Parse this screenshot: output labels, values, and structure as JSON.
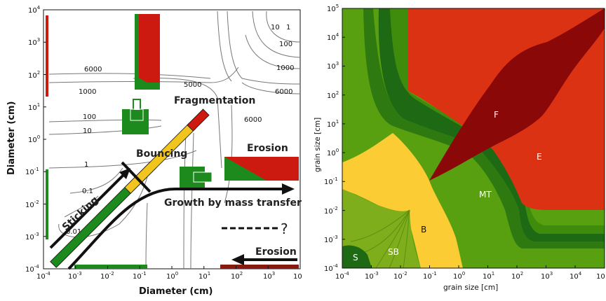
{
  "left_panel": {
    "x_axis_title": "Diameter (cm)",
    "y_axis_title": "Diameter (cm)",
    "x_ticks": [
      {
        "base": "10",
        "exp": "-4"
      },
      {
        "base": "10",
        "exp": "-3"
      },
      {
        "base": "10",
        "exp": "-2"
      },
      {
        "base": "10",
        "exp": "-1"
      },
      {
        "base": "10",
        "exp": "0"
      },
      {
        "base": "10",
        "exp": "1"
      },
      {
        "base": "10",
        "exp": "2"
      },
      {
        "base": "10",
        "exp": "3"
      },
      {
        "base": "10",
        "exp": ""
      }
    ],
    "y_ticks": [
      {
        "base": "10",
        "exp": "-4"
      },
      {
        "base": "10",
        "exp": "-3"
      },
      {
        "base": "10",
        "exp": "-2"
      },
      {
        "base": "10",
        "exp": "-1"
      },
      {
        "base": "10",
        "exp": "0"
      },
      {
        "base": "10",
        "exp": "1"
      },
      {
        "base": "10",
        "exp": "2"
      },
      {
        "base": "10",
        "exp": "3"
      },
      {
        "base": "10",
        "exp": "4"
      }
    ],
    "contour_labels": [
      "6000",
      "1000",
      "5000",
      "10",
      "1",
      "100",
      "1000",
      "6000",
      "100",
      "10",
      "6000",
      "1",
      "0.1",
      "0.01"
    ],
    "mechanisms": {
      "sticking": "Sticking",
      "bouncing": "Bouncing",
      "fragmentation": "Fragmentation",
      "erosion_top": "Erosion",
      "growth": "Growth by mass transfer",
      "question": "?",
      "erosion_bottom": "Erosion"
    },
    "colors": {
      "green": "#1d8a1d",
      "red": "#cc1a10",
      "yellow": "#f2c420",
      "contour": "#777777"
    }
  },
  "right_panel": {
    "x_axis_title": "grain size [cm]",
    "y_axis_title": "grain size [cm]",
    "x_ticks": [
      {
        "base": "10",
        "exp": "-4"
      },
      {
        "base": "10",
        "exp": "-3"
      },
      {
        "base": "10",
        "exp": "-2"
      },
      {
        "base": "10",
        "exp": "-1"
      },
      {
        "base": "10",
        "exp": "0"
      },
      {
        "base": "10",
        "exp": "1"
      },
      {
        "base": "10",
        "exp": "2"
      },
      {
        "base": "10",
        "exp": "3"
      },
      {
        "base": "10",
        "exp": "4"
      },
      {
        "base": "10",
        "exp": ""
      }
    ],
    "y_ticks": [
      {
        "base": "10",
        "exp": "-4"
      },
      {
        "base": "10",
        "exp": "-3"
      },
      {
        "base": "10",
        "exp": "-2"
      },
      {
        "base": "10",
        "exp": "-1"
      },
      {
        "base": "10",
        "exp": "0"
      },
      {
        "base": "10",
        "exp": "1"
      },
      {
        "base": "10",
        "exp": "2"
      },
      {
        "base": "10",
        "exp": "3"
      },
      {
        "base": "10",
        "exp": "4"
      },
      {
        "base": "10",
        "exp": "5"
      }
    ],
    "region_labels": [
      "F",
      "E",
      "MT",
      "B",
      "SB",
      "S"
    ],
    "colors": {
      "light_green": "#58a010",
      "mid_green": "#3f8c0c",
      "dark_green": "#1e6a14",
      "olive": "#7fae1c",
      "yellow": "#fbcc34",
      "red": "#dc3214",
      "dark_red": "#8a0808"
    }
  }
}
